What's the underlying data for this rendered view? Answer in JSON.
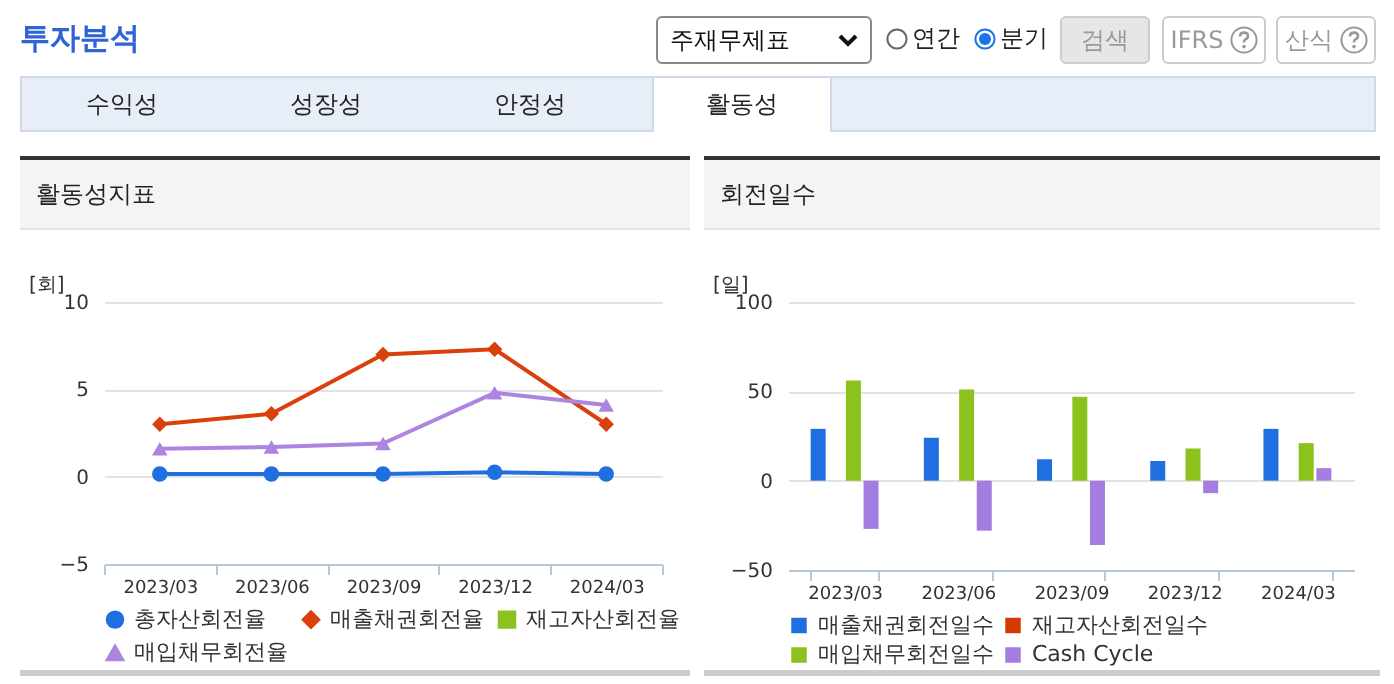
{
  "chart_data": [
    {
      "type": "other",
      "title": "투자분석",
      "annotations": [
        "주재무제표",
        "연간",
        "분기",
        "검색",
        "IFRS",
        "산식",
        "수익성",
        "성장성",
        "안정성",
        "활동성"
      ]
    },
    {
      "type": "line",
      "title": "활동성지표",
      "ylabel": "[회]",
      "categories": [
        "2023/03",
        "2023/06",
        "2023/09",
        "2023/12",
        "2024/03"
      ],
      "ylim": [
        -5,
        10
      ],
      "yticks": [
        -5,
        0,
        5,
        10
      ],
      "grid": "y",
      "legend": "bottom",
      "line_style": "solid",
      "series": [
        {
          "name": "총자산회전율",
          "color": "#1f6fe0",
          "marker": "circle",
          "values": [
            0.15,
            0.15,
            0.15,
            0.25,
            0.15
          ]
        },
        {
          "name": "매출채권회전율",
          "color": "#d9400c",
          "marker": "diamond",
          "values": [
            3.0,
            3.6,
            7.0,
            7.3,
            3.0
          ]
        },
        {
          "name": "재고자산회전율",
          "color": "#8cc21e",
          "marker": "square",
          "values": [
            null,
            null,
            null,
            null,
            null
          ]
        },
        {
          "name": "매입채무회전율",
          "color": "#ad85e0",
          "marker": "triangle",
          "values": [
            1.6,
            1.7,
            1.9,
            4.8,
            4.1
          ]
        }
      ]
    },
    {
      "type": "bar",
      "title": "회전일수",
      "ylabel": "[일]",
      "categories": [
        "2023/03",
        "2023/06",
        "2023/09",
        "2023/12",
        "2024/03"
      ],
      "ylim": [
        -50,
        100
      ],
      "yticks": [
        -50,
        0,
        50,
        100
      ],
      "grid": "y",
      "legend": "bottom",
      "series": [
        {
          "name": "매출채권회전일수",
          "color": "#1f6fe0",
          "values": [
            29,
            24,
            12,
            11,
            29
          ]
        },
        {
          "name": "재고자산회전일수",
          "color": "#d23b00",
          "values": [
            null,
            null,
            null,
            null,
            null
          ]
        },
        {
          "name": "매입채무회전일수",
          "color": "#8cc21e",
          "values": [
            56,
            51,
            47,
            18,
            21
          ]
        },
        {
          "name": "Cash Cycle",
          "color": "#a47de0",
          "values": [
            -27,
            -28,
            -36,
            -7,
            7
          ]
        }
      ]
    }
  ]
}
